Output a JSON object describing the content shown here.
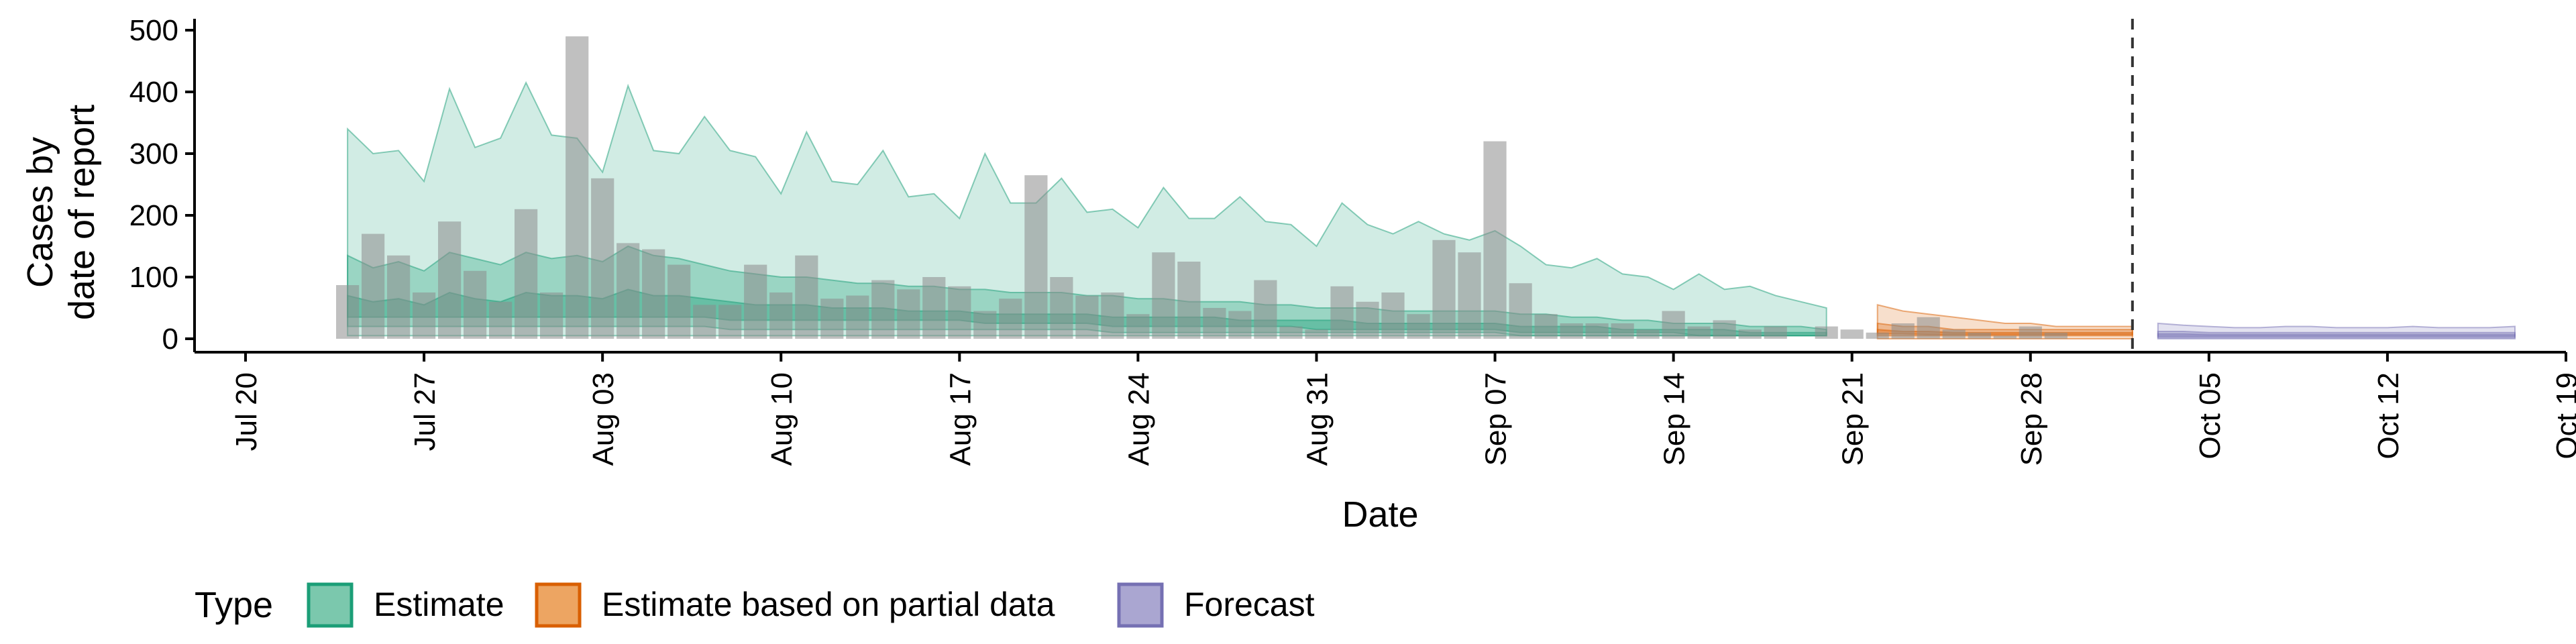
{
  "chart_data": {
    "type": "bar",
    "xlabel": "Date",
    "ylabel_lines": [
      "Cases by",
      "date of report"
    ],
    "ylim": [
      0,
      520
    ],
    "yticks": [
      0,
      100,
      200,
      300,
      400,
      500
    ],
    "xlim": [
      "2020-07-18",
      "2020-10-19"
    ],
    "xticks": [
      {
        "date": "2020-07-20",
        "label": "Jul 20"
      },
      {
        "date": "2020-07-27",
        "label": "Jul 27"
      },
      {
        "date": "2020-08-03",
        "label": "Aug 03"
      },
      {
        "date": "2020-08-10",
        "label": "Aug 10"
      },
      {
        "date": "2020-08-17",
        "label": "Aug 17"
      },
      {
        "date": "2020-08-24",
        "label": "Aug 24"
      },
      {
        "date": "2020-08-31",
        "label": "Aug 31"
      },
      {
        "date": "2020-09-07",
        "label": "Sep 07"
      },
      {
        "date": "2020-09-14",
        "label": "Sep 14"
      },
      {
        "date": "2020-09-21",
        "label": "Sep 21"
      },
      {
        "date": "2020-09-28",
        "label": "Sep 28"
      },
      {
        "date": "2020-10-05",
        "label": "Oct 05"
      },
      {
        "date": "2020-10-12",
        "label": "Oct 12"
      },
      {
        "date": "2020-10-19",
        "label": "Oct 19"
      }
    ],
    "vline_date": "2020-10-02",
    "bars_start_date": "2020-07-24",
    "bars": [
      87,
      170,
      135,
      75,
      190,
      110,
      60,
      210,
      75,
      490,
      260,
      155,
      145,
      120,
      55,
      55,
      120,
      75,
      135,
      65,
      70,
      95,
      80,
      100,
      85,
      45,
      65,
      265,
      100,
      70,
      75,
      40,
      140,
      125,
      50,
      45,
      95,
      20,
      15,
      85,
      60,
      75,
      40,
      160,
      140,
      320,
      90,
      40,
      25,
      25,
      25,
      15,
      45,
      20,
      30,
      15,
      20,
      0,
      20,
      15,
      10,
      25,
      35,
      15,
      10,
      5,
      20,
      10
    ],
    "legend_title": "Type",
    "legend": [
      {
        "label": "Estimate",
        "fill": "#7bc8ad",
        "stroke": "#1b9e77"
      },
      {
        "label": "Estimate based on partial data",
        "fill": "#eda562",
        "stroke": "#d95f02"
      },
      {
        "label": "Forecast",
        "fill": "#aaa6d1",
        "stroke": "#7570b3"
      }
    ],
    "series": [
      {
        "name": "Estimate",
        "color": "#1b9e77",
        "start_date": "2020-07-24",
        "outer_upper": [
          340,
          300,
          305,
          255,
          405,
          310,
          325,
          415,
          330,
          325,
          270,
          410,
          305,
          300,
          360,
          305,
          295,
          235,
          335,
          255,
          250,
          305,
          230,
          235,
          195,
          300,
          220,
          220,
          260,
          205,
          210,
          180,
          245,
          195,
          195,
          230,
          190,
          185,
          150,
          220,
          185,
          170,
          190,
          170,
          160,
          175,
          150,
          120,
          115,
          130,
          105,
          100,
          80,
          105,
          80,
          85,
          70,
          60,
          50
        ],
        "outer_lower": [
          5,
          5,
          5,
          5,
          5,
          5,
          5,
          5,
          5,
          5,
          5,
          5,
          5,
          5,
          5,
          5,
          5,
          5,
          5,
          5,
          5,
          5,
          5,
          5,
          5,
          5,
          5,
          5,
          5,
          5,
          5,
          5,
          5,
          5,
          5,
          5,
          5,
          5,
          5,
          5,
          5,
          5,
          5,
          5,
          5,
          5,
          5,
          5,
          5,
          5,
          5,
          5,
          5,
          5,
          5,
          5,
          5,
          5,
          5
        ],
        "inner_upper": [
          135,
          115,
          125,
          110,
          140,
          130,
          120,
          140,
          130,
          135,
          125,
          150,
          135,
          130,
          120,
          110,
          105,
          100,
          100,
          95,
          90,
          90,
          85,
          85,
          80,
          80,
          75,
          75,
          75,
          70,
          70,
          65,
          65,
          60,
          60,
          60,
          55,
          55,
          50,
          50,
          50,
          45,
          45,
          45,
          45,
          45,
          40,
          40,
          35,
          35,
          30,
          30,
          25,
          25,
          25,
          20,
          20,
          20,
          15
        ],
        "inner_lower": [
          20,
          20,
          20,
          20,
          20,
          20,
          20,
          20,
          20,
          20,
          20,
          20,
          20,
          20,
          20,
          15,
          15,
          15,
          15,
          15,
          15,
          15,
          15,
          15,
          15,
          15,
          15,
          15,
          15,
          15,
          10,
          10,
          10,
          10,
          10,
          10,
          10,
          10,
          10,
          10,
          10,
          10,
          10,
          10,
          10,
          10,
          5,
          5,
          5,
          5,
          5,
          5,
          5,
          5,
          5,
          5,
          5,
          5,
          5
        ],
        "core_upper": [
          70,
          60,
          65,
          55,
          75,
          65,
          60,
          75,
          70,
          70,
          65,
          80,
          70,
          70,
          65,
          60,
          55,
          55,
          55,
          50,
          50,
          50,
          45,
          45,
          45,
          40,
          40,
          40,
          40,
          40,
          35,
          35,
          35,
          35,
          35,
          30,
          30,
          30,
          30,
          30,
          25,
          25,
          25,
          25,
          25,
          25,
          20,
          20,
          20,
          20,
          15,
          15,
          15,
          15,
          15,
          10,
          10,
          10,
          10
        ],
        "core_lower": [
          35,
          35,
          35,
          35,
          35,
          35,
          35,
          35,
          35,
          35,
          35,
          35,
          35,
          35,
          35,
          30,
          30,
          30,
          30,
          30,
          30,
          30,
          30,
          30,
          30,
          25,
          25,
          25,
          25,
          25,
          20,
          20,
          20,
          20,
          20,
          20,
          20,
          20,
          15,
          15,
          15,
          15,
          15,
          15,
          15,
          15,
          10,
          10,
          10,
          10,
          10,
          10,
          10,
          5,
          5,
          5,
          5,
          5,
          5
        ]
      },
      {
        "name": "Estimate based on partial data",
        "color": "#d95f02",
        "start_date": "2020-09-22",
        "outer_upper": [
          55,
          45,
          40,
          35,
          30,
          25,
          25,
          20,
          20,
          20,
          20
        ],
        "outer_lower": [
          0,
          0,
          0,
          0,
          0,
          0,
          0,
          0,
          0,
          0,
          0
        ],
        "inner_upper": [
          25,
          20,
          20,
          15,
          15,
          15,
          15,
          15,
          15,
          15,
          15
        ],
        "inner_lower": [
          5,
          5,
          5,
          5,
          5,
          5,
          5,
          5,
          5,
          5,
          5
        ],
        "core_upper": [
          15,
          12,
          12,
          10,
          10,
          10,
          10,
          10,
          10,
          10,
          10
        ],
        "core_lower": [
          8,
          8,
          7,
          7,
          7,
          7,
          7,
          7,
          7,
          7,
          7
        ]
      },
      {
        "name": "Forecast",
        "color": "#7570b3",
        "start_date": "2020-10-03",
        "outer_upper": [
          25,
          22,
          20,
          18,
          18,
          20,
          20,
          18,
          18,
          18,
          20,
          18,
          18,
          18,
          20
        ],
        "outer_lower": [
          0,
          0,
          0,
          0,
          0,
          0,
          0,
          0,
          0,
          0,
          0,
          0,
          0,
          0,
          0
        ],
        "inner_upper": [
          12,
          12,
          10,
          10,
          10,
          10,
          10,
          10,
          10,
          10,
          10,
          10,
          10,
          10,
          10
        ],
        "inner_lower": [
          2,
          2,
          2,
          2,
          2,
          2,
          2,
          2,
          2,
          2,
          2,
          2,
          2,
          2,
          2
        ],
        "core_upper": [
          8,
          8,
          7,
          7,
          7,
          7,
          7,
          7,
          7,
          7,
          7,
          7,
          7,
          7,
          7
        ],
        "core_lower": [
          4,
          4,
          4,
          4,
          4,
          4,
          4,
          4,
          4,
          4,
          4,
          4,
          4,
          4,
          4
        ]
      }
    ]
  }
}
